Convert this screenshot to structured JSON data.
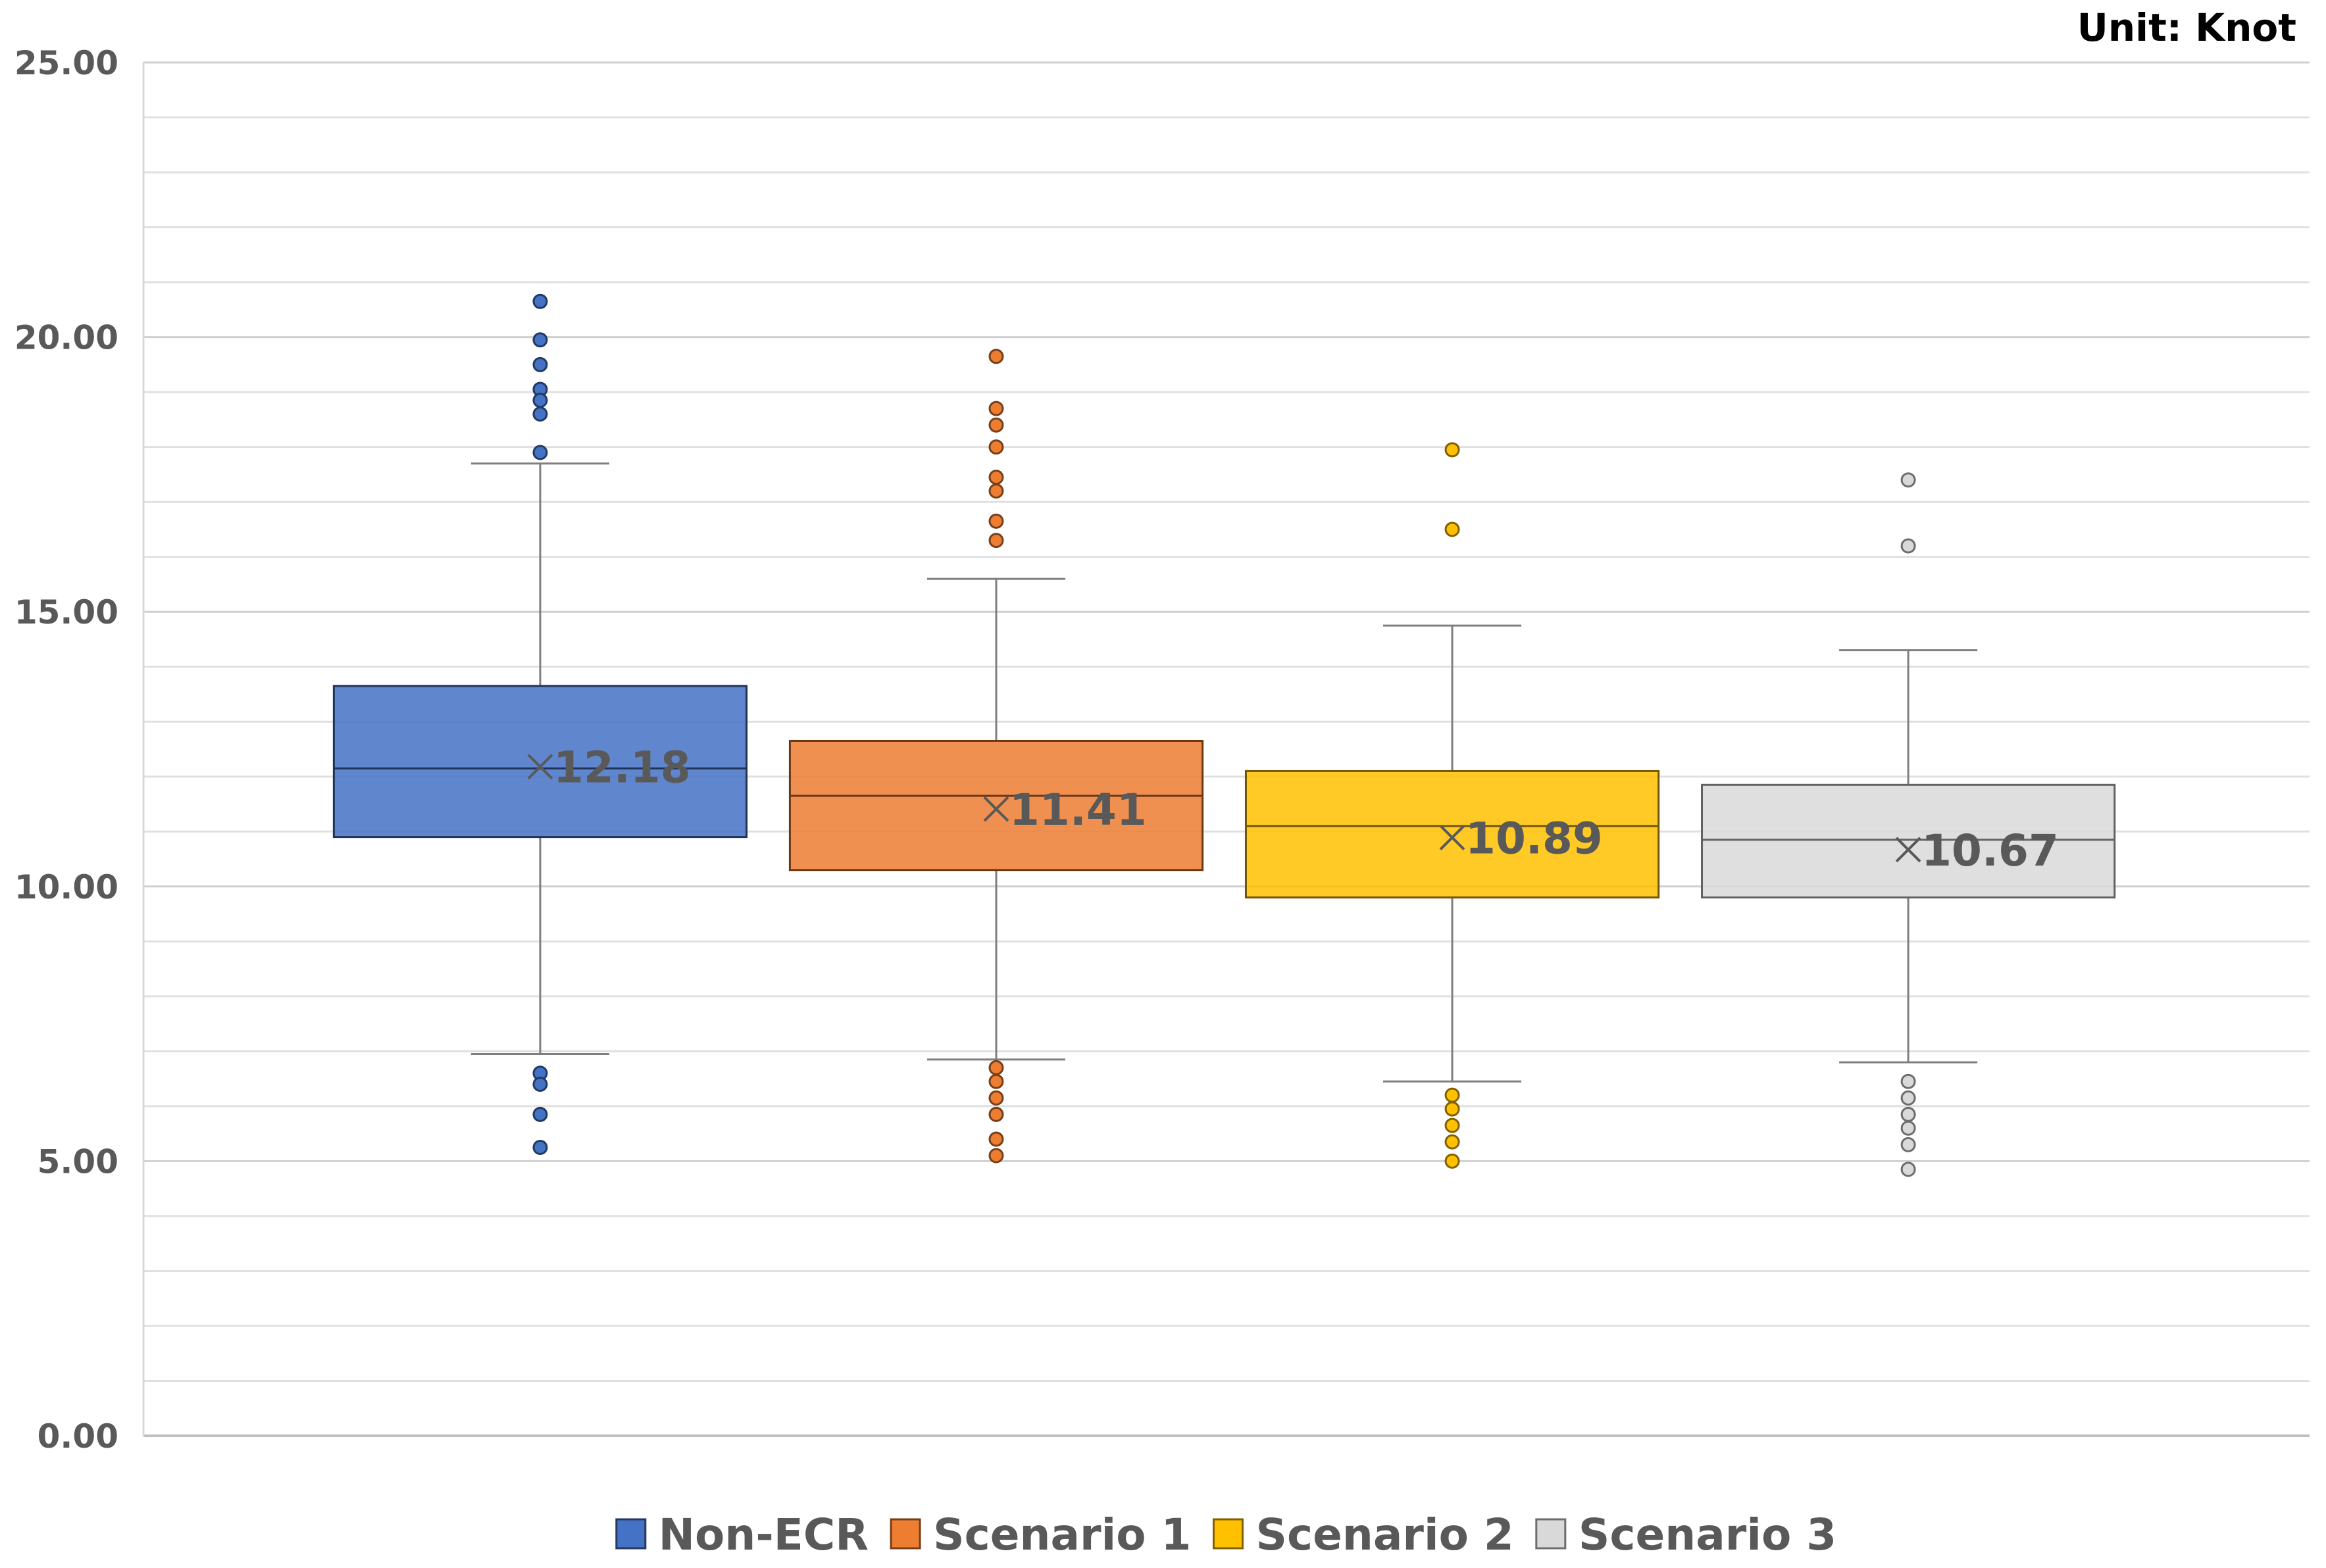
{
  "chart_data": {
    "type": "boxplot",
    "title": "",
    "unit_label": "Unit: Knot",
    "xlabel": "",
    "ylabel": "",
    "ylim": [
      0,
      25
    ],
    "y_major_ticks": [
      0,
      5,
      10,
      15,
      20,
      25
    ],
    "y_tick_labels": [
      "0.00",
      "5.00",
      "10.00",
      "15.00",
      "20.00",
      "25.00"
    ],
    "y_minor_step": 1,
    "grid": true,
    "legend_position": "bottom",
    "series": [
      {
        "name": "Non-ECR",
        "color": "#4472C4",
        "whisker_low": 6.95,
        "q1": 10.9,
        "median": 12.15,
        "q3": 13.65,
        "whisker_high": 17.7,
        "mean": 12.18,
        "mean_label": "12.18",
        "outliers": [
          20.65,
          19.95,
          19.5,
          19.05,
          18.85,
          18.6,
          17.9,
          6.6,
          6.4,
          5.85,
          5.25
        ]
      },
      {
        "name": "Scenario 1",
        "color": "#ED7D31",
        "whisker_low": 6.85,
        "q1": 10.3,
        "median": 11.65,
        "q3": 12.65,
        "whisker_high": 15.6,
        "mean": 11.41,
        "mean_label": "11.41",
        "outliers": [
          19.65,
          18.7,
          18.4,
          18.0,
          17.45,
          17.2,
          16.65,
          16.3,
          6.7,
          6.45,
          6.15,
          5.85,
          5.4,
          5.1
        ]
      },
      {
        "name": "Scenario 2",
        "color": "#FFC000",
        "whisker_low": 6.45,
        "q1": 9.8,
        "median": 11.1,
        "q3": 12.1,
        "whisker_high": 14.75,
        "mean": 10.89,
        "mean_label": "10.89",
        "outliers": [
          17.95,
          16.5,
          6.2,
          5.95,
          5.65,
          5.35,
          5.0
        ]
      },
      {
        "name": "Scenario 3",
        "color": "#D9D9D9",
        "whisker_low": 6.8,
        "q1": 9.8,
        "median": 10.85,
        "q3": 11.85,
        "whisker_high": 14.3,
        "mean": 10.67,
        "mean_label": "10.67",
        "outliers": [
          17.4,
          16.2,
          6.45,
          6.15,
          5.85,
          5.6,
          5.3,
          4.85
        ]
      }
    ]
  }
}
